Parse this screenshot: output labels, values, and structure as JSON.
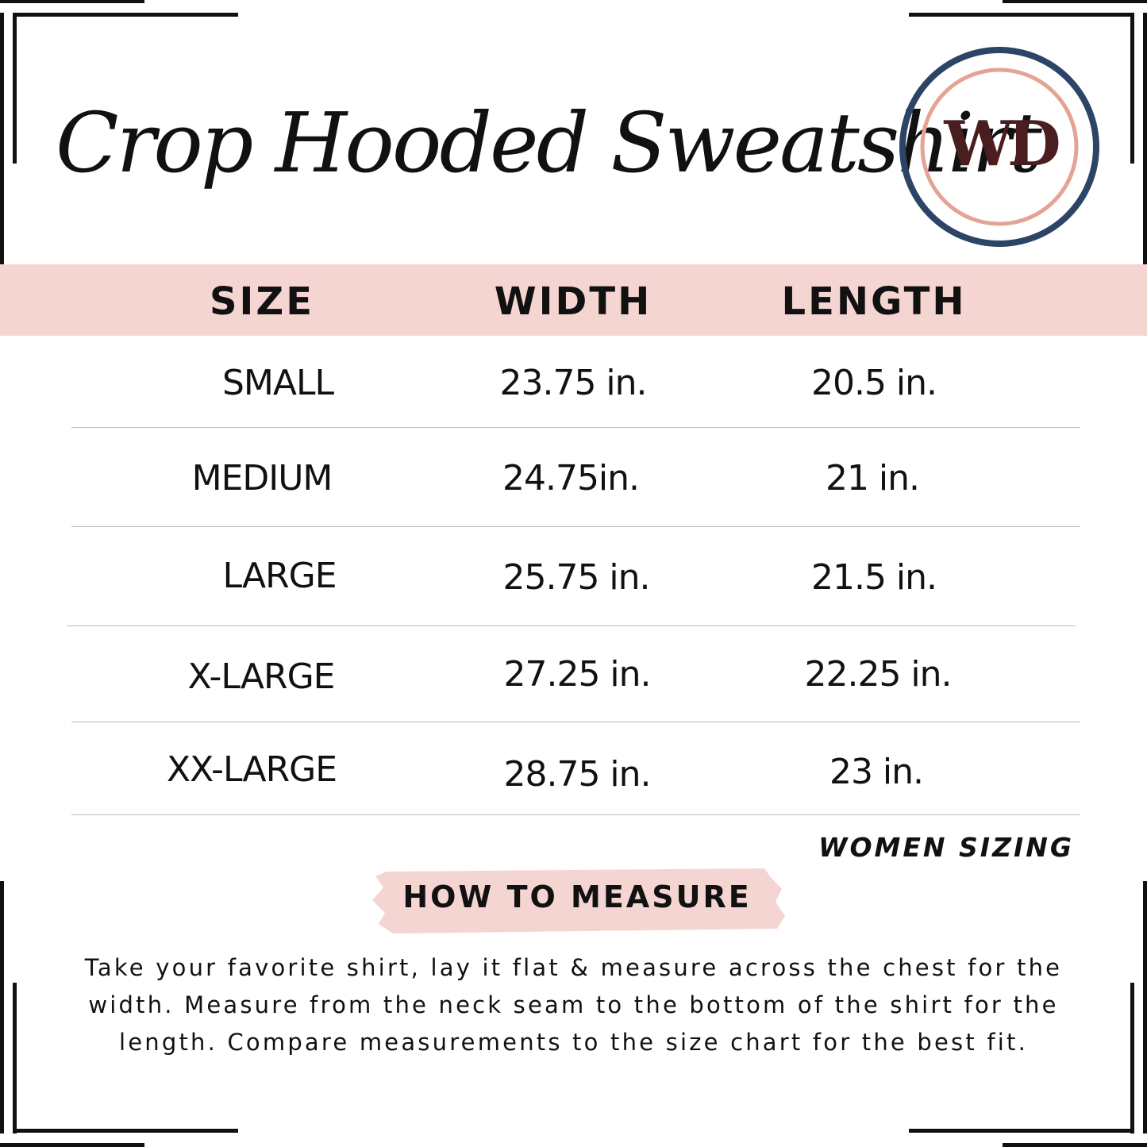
{
  "title": "Crop Hooded Sweatshirt",
  "logo": {
    "monogram": "WD",
    "ring_outer_color": "#2c4566",
    "ring_inner_color": "#e3a493",
    "letter_color": "#4a1d1f"
  },
  "colors": {
    "header_band": "#f5d5d1",
    "text": "#111111",
    "divider": "#bdbdbd"
  },
  "table": {
    "headers": {
      "size": "SIZE",
      "width": "WIDTH",
      "length": "LENGTH"
    },
    "rows": [
      {
        "size": "SMALL",
        "width": "23.75 in.",
        "length": "20.5 in."
      },
      {
        "size": "MEDIUM",
        "width": "24.75in.",
        "length": "21 in."
      },
      {
        "size": "LARGE",
        "width": "25.75 in.",
        "length": "21.5 in."
      },
      {
        "size": "X-LARGE",
        "width": "27.25 in.",
        "length": "22.25 in."
      },
      {
        "size": "XX-LARGE",
        "width": "28.75 in.",
        "length": "23 in."
      }
    ],
    "note": "WOMEN SIZING"
  },
  "how_to_measure": {
    "heading": "HOW TO MEASURE",
    "text": "Take your favorite shirt, lay it flat & measure across the chest for the width. Measure from the neck seam to the bottom of the shirt for the length. Compare measurements to the size chart for the best fit."
  }
}
